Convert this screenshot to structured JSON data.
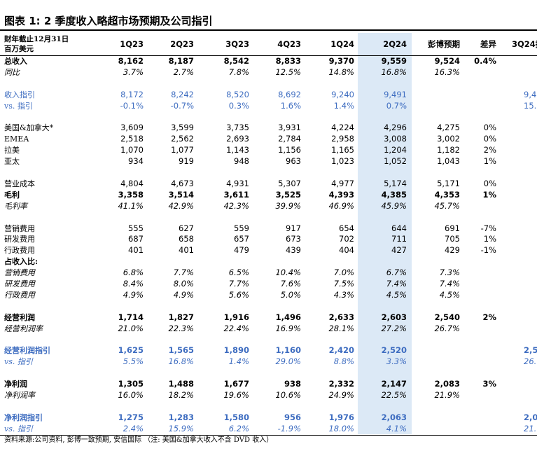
{
  "title": "图表 1: 2 季度收入略超市场预期及公司指引",
  "header": {
    "unit_lines": [
      "财年截止12月31日",
      "百万美元"
    ],
    "columns": [
      "1Q23",
      "2Q23",
      "3Q23",
      "4Q23",
      "1Q24",
      "2Q24",
      "彭博预期",
      "差异",
      "3Q24指"
    ]
  },
  "highlight_column": 5,
  "sections": [
    [
      {
        "label": "总收入",
        "bold": true,
        "values": [
          "8,162",
          "8,187",
          "8,542",
          "8,833",
          "9,370",
          "9,559",
          "9,524",
          "0.4%",
          null
        ]
      },
      {
        "label": "同比",
        "italic": true,
        "values": [
          "3.7%",
          "2.7%",
          "7.8%",
          "12.5%",
          "14.8%",
          "16.8%",
          "16.3%",
          null,
          null
        ]
      }
    ],
    [
      {
        "label": "收入指引",
        "color": "#3d6cc0",
        "values": [
          "8,172",
          "8,242",
          "8,520",
          "8,692",
          "9,240",
          "9,491",
          null,
          null,
          "9,4"
        ]
      },
      {
        "label": "vs. 指引",
        "color": "#3d6cc0",
        "values": [
          "-0.1%",
          "-0.7%",
          "0.3%",
          "1.6%",
          "1.4%",
          "0.7%",
          null,
          null,
          "15."
        ]
      }
    ],
    [
      {
        "label": "美国&加拿大*",
        "values": [
          "3,609",
          "3,599",
          "3,735",
          "3,931",
          "4,224",
          "4,296",
          "4,275",
          "0%",
          null
        ]
      },
      {
        "label": "EMEA",
        "values": [
          "2,518",
          "2,562",
          "2,693",
          "2,784",
          "2,958",
          "3,008",
          "3,002",
          "0%",
          null
        ]
      },
      {
        "label": "拉美",
        "values": [
          "1,070",
          "1,077",
          "1,143",
          "1,156",
          "1,165",
          "1,204",
          "1,182",
          "2%",
          null
        ]
      },
      {
        "label": "亚太",
        "values": [
          "934",
          "919",
          "948",
          "963",
          "1,023",
          "1,052",
          "1,043",
          "1%",
          null
        ]
      }
    ],
    [
      {
        "label": "营业成本",
        "values": [
          "4,804",
          "4,673",
          "4,931",
          "5,307",
          "4,977",
          "5,174",
          "5,171",
          "0%",
          null
        ]
      },
      {
        "label": "毛利",
        "bold": true,
        "values": [
          "3,358",
          "3,514",
          "3,611",
          "3,525",
          "4,393",
          "4,385",
          "4,353",
          "1%",
          null
        ]
      },
      {
        "label": "毛利率",
        "italic": true,
        "values": [
          "41.1%",
          "42.9%",
          "42.3%",
          "39.9%",
          "46.9%",
          "45.9%",
          "45.7%",
          null,
          null
        ]
      }
    ],
    [
      {
        "label": "营销费用",
        "values": [
          "555",
          "627",
          "559",
          "917",
          "654",
          "644",
          "691",
          "-7%",
          null
        ]
      },
      {
        "label": "研发费用",
        "values": [
          "687",
          "658",
          "657",
          "673",
          "702",
          "711",
          "705",
          "1%",
          null
        ]
      },
      {
        "label": "行政费用",
        "values": [
          "401",
          "401",
          "479",
          "439",
          "404",
          "427",
          "429",
          "-1%",
          null
        ]
      },
      {
        "label": "占收入比:",
        "bold": true,
        "values": [
          null,
          null,
          null,
          null,
          null,
          null,
          null,
          null,
          null
        ]
      },
      {
        "label": "营销费用",
        "italic": true,
        "values": [
          "6.8%",
          "7.7%",
          "6.5%",
          "10.4%",
          "7.0%",
          "6.7%",
          "7.3%",
          null,
          null
        ]
      },
      {
        "label": "研发费用",
        "italic": true,
        "values": [
          "8.4%",
          "8.0%",
          "7.7%",
          "7.6%",
          "7.5%",
          "7.4%",
          "7.4%",
          null,
          null
        ]
      },
      {
        "label": "行政费用",
        "italic": true,
        "values": [
          "4.9%",
          "4.9%",
          "5.6%",
          "5.0%",
          "4.3%",
          "4.5%",
          "4.5%",
          null,
          null
        ]
      }
    ],
    [
      {
        "label": "经营利润",
        "bold": true,
        "values": [
          "1,714",
          "1,827",
          "1,916",
          "1,496",
          "2,633",
          "2,603",
          "2,540",
          "2%",
          null
        ]
      },
      {
        "label": "经营利润率",
        "italic": true,
        "values": [
          "21.0%",
          "22.3%",
          "22.4%",
          "16.9%",
          "28.1%",
          "27.2%",
          "26.7%",
          null,
          null
        ]
      }
    ],
    [
      {
        "label": "经营利润指引",
        "bold": true,
        "color": "#3d6cc0",
        "values": [
          "1,625",
          "1,565",
          "1,890",
          "1,160",
          "2,420",
          "2,520",
          null,
          null,
          "2,5"
        ]
      },
      {
        "label": "vs. 指引",
        "italic": true,
        "color": "#3d6cc0",
        "values": [
          "5.5%",
          "16.8%",
          "1.4%",
          "29.0%",
          "8.8%",
          "3.3%",
          null,
          null,
          "26."
        ]
      }
    ],
    [
      {
        "label": "净利润",
        "bold": true,
        "values": [
          "1,305",
          "1,488",
          "1,677",
          "938",
          "2,332",
          "2,147",
          "2,083",
          "3%",
          null
        ]
      },
      {
        "label": "净利润率",
        "italic": true,
        "values": [
          "16.0%",
          "18.2%",
          "19.6%",
          "10.6%",
          "24.9%",
          "22.5%",
          "21.9%",
          null,
          null
        ]
      }
    ],
    [
      {
        "label": "净利润指引",
        "bold": true,
        "color": "#3d6cc0",
        "values": [
          "1,275",
          "1,283",
          "1,580",
          "956",
          "1,976",
          "2,063",
          null,
          null,
          "2,0"
        ]
      },
      {
        "label": "vs. 指引",
        "italic": true,
        "color": "#3d6cc0",
        "values": [
          "2.4%",
          "15.9%",
          "6.2%",
          "-1.9%",
          "18.0%",
          "4.1%",
          null,
          null,
          "21."
        ]
      }
    ]
  ],
  "footer": "资料来源:公司资料, 彭博一致预期, 安信国际 （注: 美国&加拿大收入不含 DVD 收入）"
}
